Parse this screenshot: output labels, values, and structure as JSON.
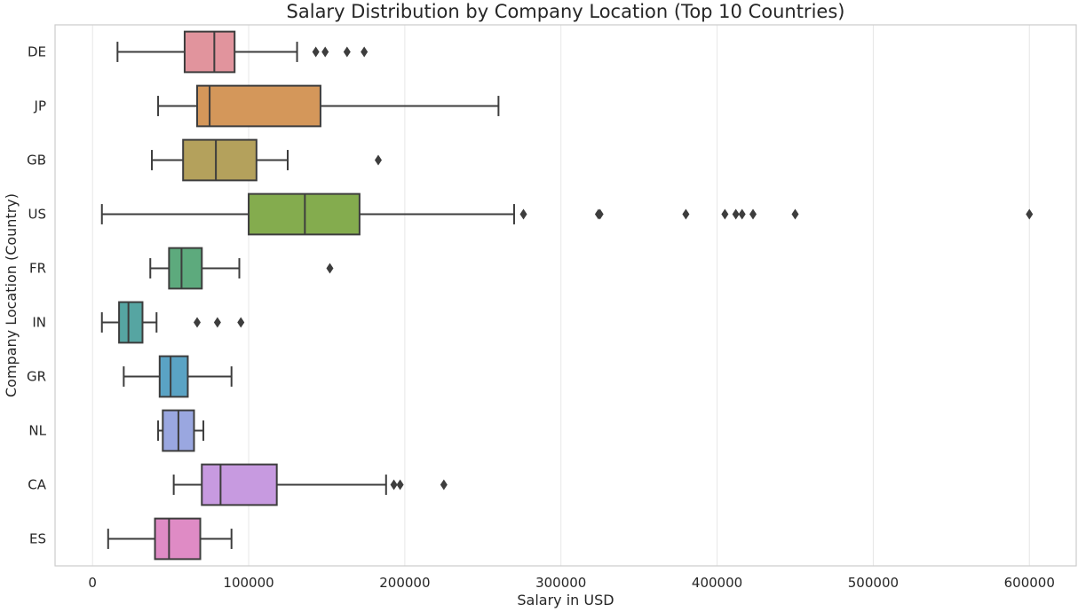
{
  "chart_data": {
    "type": "boxplot",
    "orientation": "horizontal",
    "title": "Salary Distribution by Company Location (Top 10 Countries)",
    "xlabel": "Salary in USD",
    "ylabel": "Company Location (Country)",
    "xlim": [
      -24000,
      630000
    ],
    "xticks": [
      0,
      100000,
      200000,
      300000,
      400000,
      500000,
      600000
    ],
    "grid": "vertical",
    "categories": [
      "DE",
      "JP",
      "GB",
      "US",
      "FR",
      "IN",
      "GR",
      "NL",
      "CA",
      "ES"
    ],
    "series": [
      {
        "category": "DE",
        "whisker_low": 16000,
        "q1": 59000,
        "median": 78000,
        "q3": 91000,
        "whisker_high": 131000,
        "fliers": [
          143000,
          149000,
          163000,
          174000
        ],
        "color": "#e1949d"
      },
      {
        "category": "JP",
        "whisker_low": 42000,
        "q1": 67000,
        "median": 75000,
        "q3": 146000,
        "whisker_high": 260000,
        "fliers": [],
        "color": "#d4975a"
      },
      {
        "category": "GB",
        "whisker_low": 38000,
        "q1": 58000,
        "median": 79000,
        "q3": 105000,
        "whisker_high": 125000,
        "fliers": [
          183000
        ],
        "color": "#b4a15c"
      },
      {
        "category": "US",
        "whisker_low": 6000,
        "q1": 100000,
        "median": 136000,
        "q3": 171000,
        "whisker_high": 270000,
        "fliers": [
          276000,
          324000,
          325000,
          380000,
          405000,
          412000,
          416000,
          423000,
          450000,
          600000
        ],
        "color": "#84ac4e"
      },
      {
        "category": "FR",
        "whisker_low": 37000,
        "q1": 49000,
        "median": 57000,
        "q3": 70000,
        "whisker_high": 94000,
        "fliers": [
          152000
        ],
        "color": "#5daa7d"
      },
      {
        "category": "IN",
        "whisker_low": 6000,
        "q1": 17000,
        "median": 23000,
        "q3": 32000,
        "whisker_high": 41000,
        "fliers": [
          67000,
          80000,
          95000
        ],
        "color": "#56a5a2"
      },
      {
        "category": "GR",
        "whisker_low": 20000,
        "q1": 43000,
        "median": 50000,
        "q3": 61000,
        "whisker_high": 89000,
        "fliers": [],
        "color": "#5aa3c4"
      },
      {
        "category": "NL",
        "whisker_low": 42000,
        "q1": 45000,
        "median": 55000,
        "q3": 65000,
        "whisker_high": 71000,
        "fliers": [],
        "color": "#9aa7e0"
      },
      {
        "category": "CA",
        "whisker_low": 52000,
        "q1": 70000,
        "median": 82000,
        "q3": 118000,
        "whisker_high": 188000,
        "fliers": [
          193000,
          197000,
          225000
        ],
        "color": "#c79ae0"
      },
      {
        "category": "ES",
        "whisker_low": 10000,
        "q1": 40000,
        "median": 49000,
        "q3": 69000,
        "whisker_high": 89000,
        "fliers": [],
        "color": "#df8bc5"
      }
    ]
  }
}
